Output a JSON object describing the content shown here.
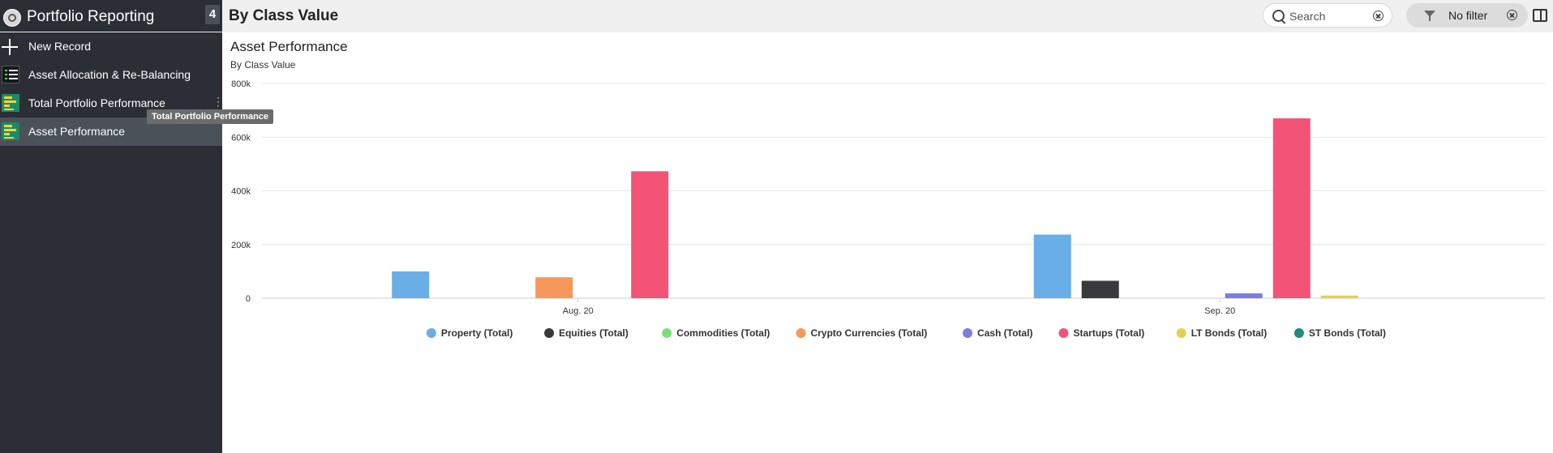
{
  "sidebar": {
    "app_title": "Portfolio Reporting",
    "count": "4",
    "items": [
      {
        "label": "New Record",
        "icon": "plus-icon"
      },
      {
        "label": "Asset Allocation & Re-Balancing",
        "icon": "list-icon"
      },
      {
        "label": "Total Portfolio Performance",
        "icon": "bar-chart-icon"
      },
      {
        "label": "Asset Performance",
        "icon": "bar-chart-icon",
        "selected": true
      }
    ],
    "tooltip": "Total Portfolio Performance"
  },
  "header": {
    "title": "By Class Value",
    "search_placeholder": "Search",
    "filter_label": "No filter"
  },
  "chart_data": {
    "type": "bar",
    "title": "Asset Performance",
    "subtitle": "By Class Value",
    "categories": [
      "Aug. 20",
      "Sep. 20"
    ],
    "ylim": [
      0,
      800000
    ],
    "y_ticks": [
      "0",
      "200k",
      "400k",
      "600k",
      "800k"
    ],
    "grid": true,
    "legend_position": "bottom",
    "series": [
      {
        "name": "Property (Total)",
        "color": "#6aaee7",
        "values": [
          100000,
          237000
        ]
      },
      {
        "name": "Equities (Total)",
        "color": "#3a3a3e",
        "values": [
          0,
          65000
        ]
      },
      {
        "name": "Commodities (Total)",
        "color": "#7ddf73",
        "values": [
          0,
          0
        ]
      },
      {
        "name": "Crypto Currencies (Total)",
        "color": "#f7985b",
        "values": [
          78000,
          0
        ]
      },
      {
        "name": "Cash (Total)",
        "color": "#7f7ce0",
        "values": [
          0,
          18000
        ]
      },
      {
        "name": "Startups (Total)",
        "color": "#f45378",
        "values": [
          473000,
          670000
        ]
      },
      {
        "name": "LT Bonds (Total)",
        "color": "#e4cf55",
        "values": [
          0,
          10000
        ]
      },
      {
        "name": "ST Bonds (Total)",
        "color": "#1f8c80",
        "values": [
          0,
          0
        ]
      }
    ]
  }
}
